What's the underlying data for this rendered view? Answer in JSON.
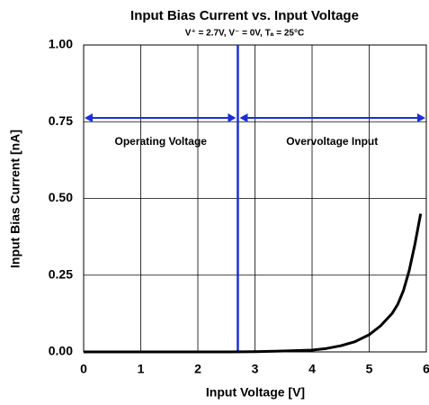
{
  "chart_data": {
    "type": "line",
    "title": "Input Bias Current vs. Input Voltage",
    "subtitle": "V⁺ = 2.7V, V⁻ = 0V, Tₐ = 25°C",
    "x_label": "Input Voltage [V]",
    "y_label": "Input Bias Current [nA]",
    "x": [
      0,
      0.5,
      1,
      1.5,
      2,
      2.5,
      3,
      3.5,
      4,
      4.25,
      4.5,
      4.75,
      5,
      5.2,
      5.4,
      5.5,
      5.6,
      5.7,
      5.8,
      5.9
    ],
    "series": [
      {
        "name": "Input Bias Current",
        "color": "#000000",
        "values": [
          0,
          0,
          0,
          0,
          0,
          0,
          0.001,
          0.003,
          0.006,
          0.011,
          0.02,
          0.033,
          0.056,
          0.085,
          0.125,
          0.155,
          0.2,
          0.265,
          0.35,
          0.45
        ]
      }
    ],
    "xlim": [
      0,
      6
    ],
    "ylim": [
      0,
      1
    ],
    "xticks": [
      0,
      1,
      2,
      3,
      4,
      5,
      6
    ],
    "yticks": [
      {
        "value": 0,
        "label": "0.00"
      },
      {
        "value": 0.25,
        "label": "0.25"
      },
      {
        "value": 0.5,
        "label": "0.50"
      },
      {
        "value": 0.75,
        "label": "0.75"
      },
      {
        "value": 1,
        "label": "1.00"
      }
    ],
    "grid": true,
    "vline_x": 2.7,
    "annotation_color": "#1a2fd8",
    "annotations": [
      "Operating Voltage",
      "Overvoltage Input"
    ]
  }
}
